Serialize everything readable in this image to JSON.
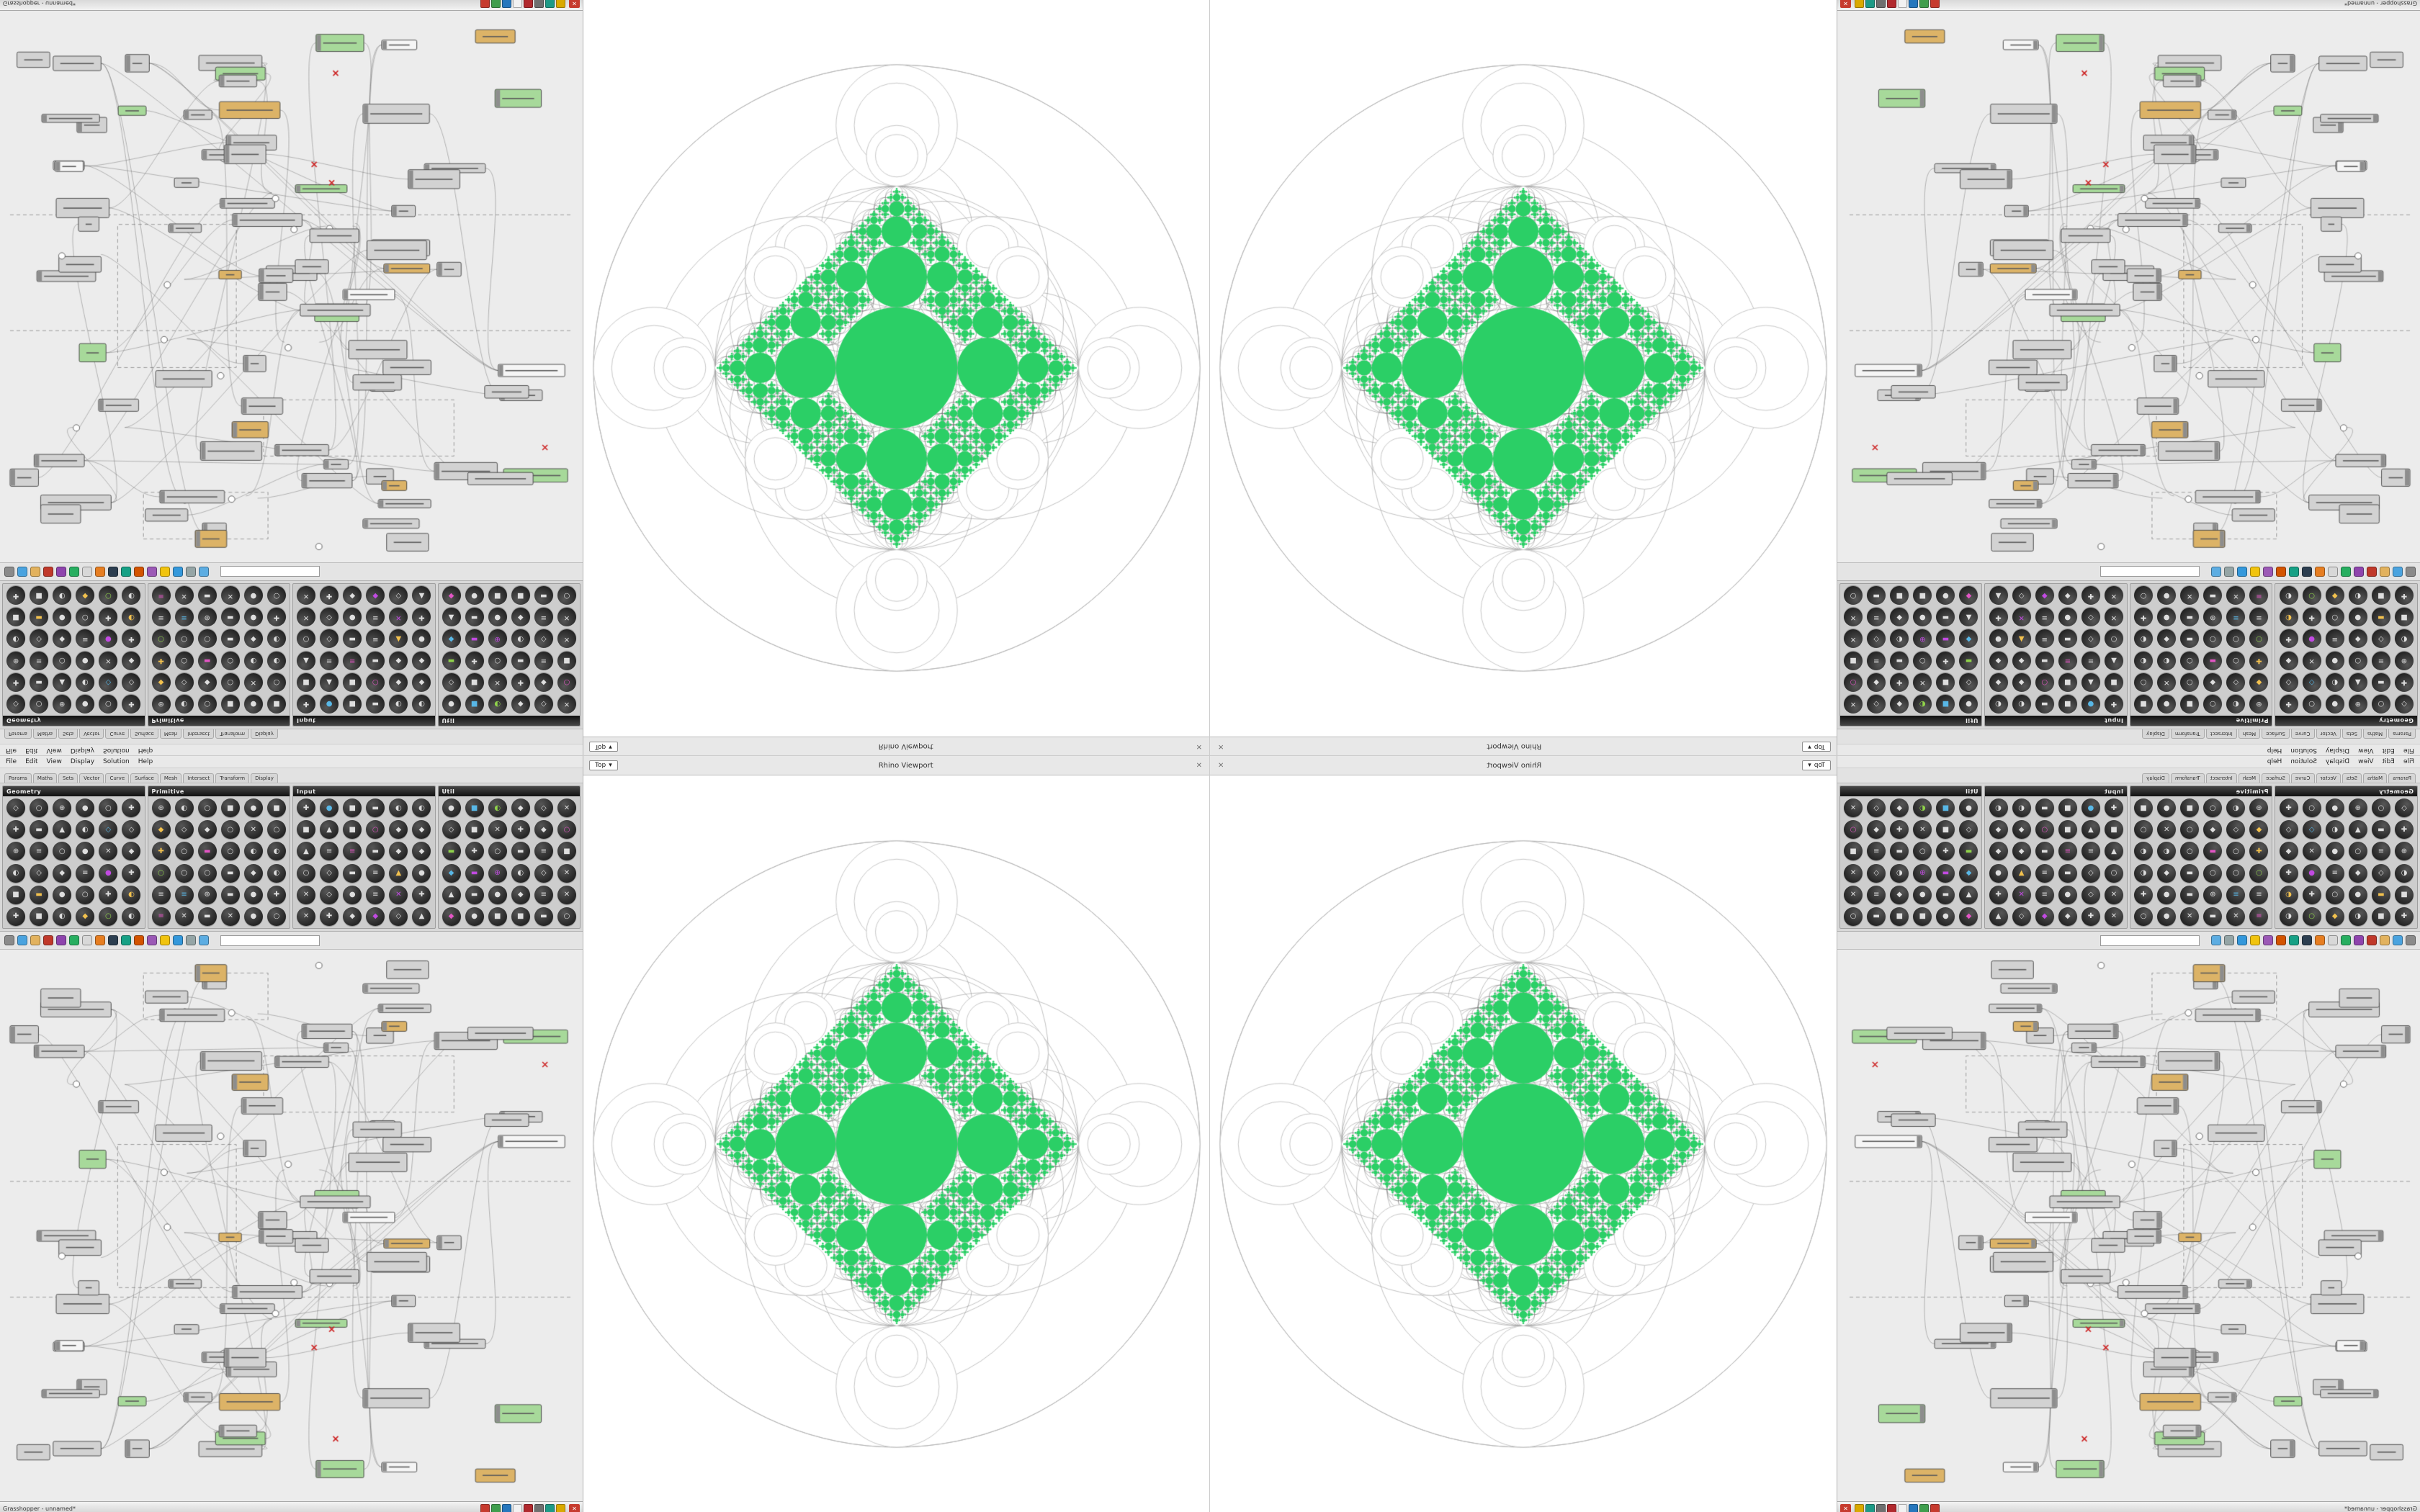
{
  "app": {
    "taskbar": {
      "title": "Grasshopper - unnamed*",
      "close_label": "✕",
      "tray_icons": [
        {
          "name": "tray-red",
          "color": "#c63b2e"
        },
        {
          "name": "tray-green",
          "color": "#3f9e4d"
        },
        {
          "name": "tray-blue",
          "color": "#2677bd"
        },
        {
          "name": "tray-white",
          "color": "#f2f2f2"
        },
        {
          "name": "tray-crimson",
          "color": "#b1292e"
        },
        {
          "name": "tray-gray",
          "color": "#6f6f6f"
        },
        {
          "name": "tray-teal",
          "color": "#1d9a86"
        },
        {
          "name": "tray-amber",
          "color": "#d9a900"
        }
      ]
    },
    "menu": {
      "items": [
        "File",
        "Edit",
        "View",
        "Display",
        "Solution",
        "Help"
      ]
    },
    "tabs": [
      "Params",
      "Maths",
      "Sets",
      "Vector",
      "Curve",
      "Surface",
      "Mesh",
      "Intersect",
      "Transform",
      "Display"
    ],
    "palette": {
      "groups": [
        {
          "label": "Geometry"
        },
        {
          "label": "Primitive"
        },
        {
          "label": "Input"
        },
        {
          "label": "Util"
        }
      ],
      "icons_per_group": 36,
      "glyphs": [
        "●",
        "◆",
        "▲",
        "■",
        "◐",
        "✚",
        "◇",
        "○",
        "▬",
        "≡",
        "⊕",
        "✕"
      ],
      "accent_colors": [
        "#e255c4",
        "#8fd24a",
        "#58b7e6",
        "#f2c14e",
        "#c24ae2"
      ]
    },
    "toolbar": {
      "search_placeholder": "",
      "icon_colors": [
        "#8a8a8a",
        "#4aa3df",
        "#e2b25e",
        "#c0392b",
        "#8e44ad",
        "#27ae60",
        "#d8d8d8",
        "#e67e22",
        "#2c3e50",
        "#16a085",
        "#d35400",
        "#9b59b6",
        "#f1c40f",
        "#3498db",
        "#95a5a6",
        "#5dade2"
      ]
    },
    "viewport": {
      "title": "Rhino Viewport",
      "tab": "Top",
      "dropdown_arrow": "▾"
    }
  },
  "fractal": {
    "green": "#2bcf66",
    "ring_color": "rgba(120,120,120,0.45)",
    "outer_ring_color": "#b5b5b5",
    "white": "#ffffff",
    "white_stroke": "#c8c8c8",
    "center_ratio": 0.2,
    "child_scale": 0.5,
    "levels": 6
  },
  "nodegraph": {
    "seed": 11,
    "node_count": 92,
    "wire_count": 56,
    "bg": "#ececec",
    "wire_color": "rgba(90,90,90,0.5)",
    "node_stroke": "#3e3e3e",
    "selected_color": "#a7d99a",
    "warning_color": "#dcb367",
    "error_color": "#cc2222"
  }
}
